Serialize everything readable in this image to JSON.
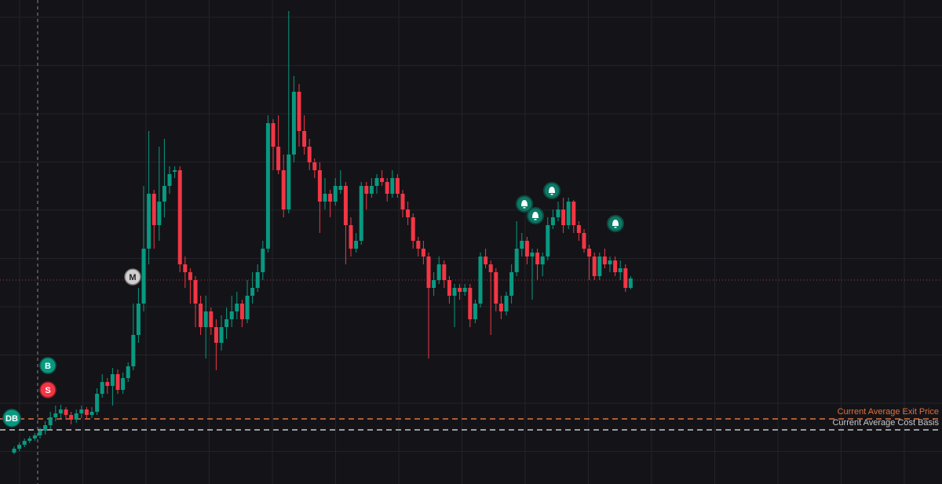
{
  "chart_data": {
    "type": "candlestick",
    "ylim": [
      0,
      617
    ],
    "up_color": "#089981",
    "down_color": "#f23645",
    "candles": [
      [
        40,
        48,
        38,
        45
      ],
      [
        45,
        53,
        42,
        50
      ],
      [
        50,
        58,
        47,
        55
      ],
      [
        55,
        61,
        52,
        58
      ],
      [
        58,
        65,
        55,
        62
      ],
      [
        62,
        72,
        58,
        68
      ],
      [
        68,
        80,
        63,
        75
      ],
      [
        75,
        92,
        70,
        85
      ],
      [
        85,
        100,
        80,
        90
      ],
      [
        90,
        101,
        84,
        95
      ],
      [
        95,
        98,
        82,
        88
      ],
      [
        88,
        92,
        76,
        82
      ],
      [
        82,
        95,
        78,
        90
      ],
      [
        90,
        100,
        84,
        95
      ],
      [
        95,
        98,
        83,
        88
      ],
      [
        88,
        98,
        84,
        92
      ],
      [
        92,
        122,
        88,
        115
      ],
      [
        115,
        140,
        110,
        130
      ],
      [
        130,
        135,
        115,
        125
      ],
      [
        125,
        148,
        100,
        140
      ],
      [
        140,
        146,
        115,
        120
      ],
      [
        120,
        142,
        115,
        135
      ],
      [
        135,
        155,
        130,
        150
      ],
      [
        150,
        230,
        145,
        190
      ],
      [
        190,
        250,
        180,
        230
      ],
      [
        230,
        380,
        220,
        300
      ],
      [
        300,
        450,
        280,
        370
      ],
      [
        370,
        375,
        300,
        330
      ],
      [
        330,
        430,
        310,
        360
      ],
      [
        360,
        440,
        340,
        380
      ],
      [
        380,
        405,
        370,
        395
      ],
      [
        398,
        405,
        390,
        400
      ],
      [
        400,
        405,
        270,
        280
      ],
      [
        280,
        290,
        250,
        270
      ],
      [
        270,
        275,
        230,
        260
      ],
      [
        260,
        265,
        200,
        230
      ],
      [
        230,
        240,
        190,
        200
      ],
      [
        200,
        240,
        160,
        220
      ],
      [
        220,
        225,
        190,
        200
      ],
      [
        200,
        210,
        145,
        180
      ],
      [
        180,
        215,
        170,
        200
      ],
      [
        200,
        225,
        185,
        210
      ],
      [
        210,
        240,
        200,
        220
      ],
      [
        220,
        245,
        210,
        230
      ],
      [
        230,
        235,
        200,
        210
      ],
      [
        210,
        260,
        205,
        240
      ],
      [
        240,
        270,
        230,
        250
      ],
      [
        250,
        280,
        245,
        270
      ],
      [
        270,
        310,
        260,
        300
      ],
      [
        300,
        470,
        295,
        460
      ],
      [
        460,
        465,
        400,
        430
      ],
      [
        430,
        470,
        395,
        400
      ],
      [
        400,
        420,
        340,
        350
      ],
      [
        350,
        603,
        345,
        420
      ],
      [
        420,
        520,
        410,
        500
      ],
      [
        500,
        510,
        430,
        450
      ],
      [
        450,
        470,
        420,
        430
      ],
      [
        430,
        440,
        400,
        410
      ],
      [
        410,
        415,
        390,
        400
      ],
      [
        400,
        410,
        320,
        360
      ],
      [
        360,
        390,
        350,
        370
      ],
      [
        370,
        375,
        340,
        360
      ],
      [
        360,
        390,
        355,
        380
      ],
      [
        375,
        400,
        370,
        380
      ],
      [
        380,
        385,
        280,
        330
      ],
      [
        330,
        340,
        290,
        300
      ],
      [
        300,
        320,
        295,
        310
      ],
      [
        310,
        385,
        305,
        380
      ],
      [
        380,
        385,
        350,
        370
      ],
      [
        370,
        390,
        365,
        380
      ],
      [
        380,
        395,
        370,
        390
      ],
      [
        390,
        400,
        380,
        385
      ],
      [
        385,
        390,
        360,
        370
      ],
      [
        370,
        400,
        365,
        390
      ],
      [
        390,
        395,
        365,
        370
      ],
      [
        370,
        375,
        340,
        350
      ],
      [
        350,
        360,
        330,
        340
      ],
      [
        340,
        345,
        300,
        310
      ],
      [
        310,
        315,
        290,
        300
      ],
      [
        300,
        310,
        280,
        290
      ],
      [
        290,
        295,
        160,
        250
      ],
      [
        250,
        270,
        240,
        260
      ],
      [
        260,
        290,
        255,
        280
      ],
      [
        280,
        285,
        250,
        260
      ],
      [
        260,
        265,
        230,
        240
      ],
      [
        240,
        255,
        200,
        250
      ],
      [
        250,
        255,
        235,
        245
      ],
      [
        245,
        255,
        240,
        250
      ],
      [
        250,
        255,
        200,
        210
      ],
      [
        210,
        235,
        205,
        230
      ],
      [
        230,
        295,
        225,
        290
      ],
      [
        290,
        300,
        275,
        280
      ],
      [
        280,
        285,
        190,
        270
      ],
      [
        270,
        275,
        220,
        230
      ],
      [
        230,
        240,
        210,
        220
      ],
      [
        220,
        245,
        215,
        240
      ],
      [
        240,
        280,
        230,
        270
      ],
      [
        270,
        335,
        265,
        300
      ],
      [
        300,
        320,
        290,
        310
      ],
      [
        310,
        315,
        280,
        290
      ],
      [
        290,
        300,
        235,
        295
      ],
      [
        295,
        300,
        260,
        280
      ],
      [
        280,
        295,
        265,
        290
      ],
      [
        290,
        340,
        285,
        330
      ],
      [
        330,
        350,
        325,
        340
      ],
      [
        340,
        360,
        335,
        350
      ],
      [
        350,
        365,
        320,
        330
      ],
      [
        330,
        365,
        325,
        360
      ],
      [
        360,
        362,
        320,
        330
      ],
      [
        330,
        335,
        310,
        320
      ],
      [
        320,
        325,
        295,
        300
      ],
      [
        300,
        305,
        260,
        290
      ],
      [
        290,
        295,
        260,
        265
      ],
      [
        265,
        295,
        260,
        290
      ],
      [
        290,
        300,
        275,
        280
      ],
      [
        280,
        290,
        270,
        285
      ],
      [
        285,
        290,
        265,
        270
      ],
      [
        270,
        285,
        260,
        275
      ],
      [
        275,
        280,
        245,
        250
      ],
      [
        250,
        265,
        248,
        262
      ]
    ],
    "levels": [
      {
        "name": "Current Average Exit Price",
        "value": 83,
        "color": "#e0713d"
      },
      {
        "name": "Current Average Cost Basis",
        "value": 69,
        "color": "#c8c8c8"
      },
      {
        "value": 260,
        "color": "#b8333a"
      }
    ],
    "markers": [
      "DB",
      "B",
      "S",
      "M"
    ]
  }
}
